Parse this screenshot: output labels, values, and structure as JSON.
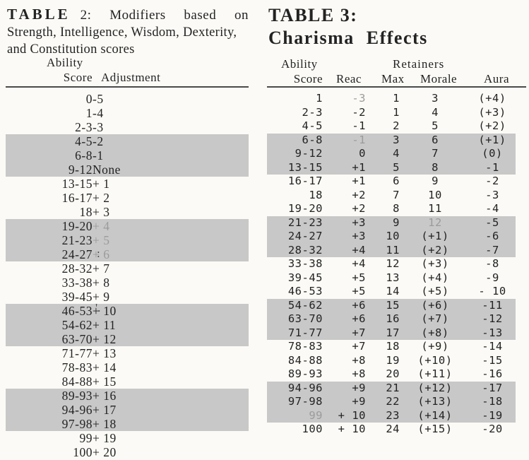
{
  "page": {
    "background": "#fbfaf6",
    "text_color": "#232323",
    "shade_color": "#c8c8c8",
    "rule_color": "#4a4a4a",
    "faded_color": "#9b9b9b"
  },
  "table2": {
    "title": {
      "word_bold": "TABLE",
      "line1_rest": "2: Modifiers based on",
      "line2": "Strength, Intelligence, Wisdom, Dexterity,",
      "line3": "and Constitution scores"
    },
    "headers": {
      "ability": "Ability",
      "score": "Score",
      "adjustment": "Adjustment"
    },
    "rows": [
      {
        "score": "0",
        "adjustment": "-5"
      },
      {
        "score": "1",
        "adjustment": "-4"
      },
      {
        "score": "2-3",
        "adjustment": "-3"
      },
      {
        "score": "4-5",
        "adjustment": "-2"
      },
      {
        "score": "6-8",
        "adjustment": "-1"
      },
      {
        "score": "9-12",
        "adjustment": "None"
      },
      {
        "score": "13-15",
        "adjustment": "+ 1"
      },
      {
        "score": "16-17",
        "adjustment": "+ 2"
      },
      {
        "score": "18",
        "adjustment": "+ 3"
      },
      {
        "score": "19-20",
        "adjustment": "+ 4",
        "faded": [
          "adjustment"
        ]
      },
      {
        "score": "21-23",
        "adjustment": "+ 5",
        "faded": [
          "adjustment"
        ]
      },
      {
        "score": "24-27",
        "adjustment": "+ 6",
        "faded": [
          "adjustment"
        ]
      },
      {
        "score": "28-32",
        "adjustment": "+ 7"
      },
      {
        "score": "33-38",
        "adjustment": "+ 8"
      },
      {
        "score": "39-45",
        "adjustment": "+ 9"
      },
      {
        "score": "46-53",
        "adjustment": "+ 10"
      },
      {
        "score": "54-62",
        "adjustment": "+ 11"
      },
      {
        "score": "63-70",
        "adjustment": "+ 12"
      },
      {
        "score": "71-77",
        "adjustment": "+ 13"
      },
      {
        "score": "78-83",
        "adjustment": "+ 14"
      },
      {
        "score": "84-88",
        "adjustment": "+ 15"
      },
      {
        "score": "89-93",
        "adjustment": "+ 16"
      },
      {
        "score": "94-96",
        "adjustment": "+ 17"
      },
      {
        "score": "97-98",
        "adjustment": "+ 18"
      },
      {
        "score": "99",
        "adjustment": "+ 19"
      },
      {
        "score": "100",
        "adjustment": "+ 20"
      }
    ]
  },
  "table3": {
    "title": {
      "line1": "TABLE 3:",
      "line2": "Charisma Effects"
    },
    "headers": {
      "ability": "Ability",
      "retainers": "Retainers",
      "score": "Score",
      "reac": "Reac",
      "max": "Max",
      "morale": "Morale",
      "aura": "Aura"
    },
    "rows": [
      {
        "score": "1",
        "reac": "-3",
        "max": "1",
        "morale": "3",
        "aura": "(+4)",
        "faded": [
          "reac"
        ]
      },
      {
        "score": "2-3",
        "reac": "-2",
        "max": "1",
        "morale": "4",
        "aura": "(+3)"
      },
      {
        "score": "4-5",
        "reac": "-1",
        "max": "2",
        "morale": "5",
        "aura": "(+2)"
      },
      {
        "score": "6-8",
        "reac": "-1",
        "max": "3",
        "morale": "6",
        "aura": "(+1)",
        "faded": [
          "reac"
        ]
      },
      {
        "score": "9-12",
        "reac": "0",
        "max": "4",
        "morale": "7",
        "aura": "(0)"
      },
      {
        "score": "13-15",
        "reac": "+1",
        "max": "5",
        "morale": "8",
        "aura": "-1"
      },
      {
        "score": "16-17",
        "reac": "+1",
        "max": "6",
        "morale": "9",
        "aura": "-2"
      },
      {
        "score": "18",
        "reac": "+2",
        "max": "7",
        "morale": "10",
        "aura": "-3"
      },
      {
        "score": "19-20",
        "reac": "+2",
        "max": "8",
        "morale": "11",
        "aura": "-4"
      },
      {
        "score": "21-23",
        "reac": "+3",
        "max": "9",
        "morale": "12",
        "aura": "-5",
        "faded": [
          "morale"
        ]
      },
      {
        "score": "24-27",
        "reac": "+3",
        "max": "10",
        "morale": "(+1)",
        "aura": "-6"
      },
      {
        "score": "28-32",
        "reac": "+4",
        "max": "11",
        "morale": "(+2)",
        "aura": "-7"
      },
      {
        "score": "33-38",
        "reac": "+4",
        "max": "12",
        "morale": "(+3)",
        "aura": "-8"
      },
      {
        "score": "39-45",
        "reac": "+5",
        "max": "13",
        "morale": "(+4)",
        "aura": "-9"
      },
      {
        "score": "46-53",
        "reac": "+5",
        "max": "14",
        "morale": "(+5)",
        "aura": "- 10"
      },
      {
        "score": "54-62",
        "reac": "+6",
        "max": "15",
        "morale": "(+6)",
        "aura": "-11"
      },
      {
        "score": "63-70",
        "reac": "+6",
        "max": "16",
        "morale": "(+7)",
        "aura": "-12"
      },
      {
        "score": "71-77",
        "reac": "+7",
        "max": "17",
        "morale": "(+8)",
        "aura": "-13"
      },
      {
        "score": "78-83",
        "reac": "+7",
        "max": "18",
        "morale": "(+9)",
        "aura": "-14"
      },
      {
        "score": "84-88",
        "reac": "+8",
        "max": "19",
        "morale": "(+10)",
        "aura": "-15"
      },
      {
        "score": "89-93",
        "reac": "+8",
        "max": "20",
        "morale": "(+11)",
        "aura": "-16"
      },
      {
        "score": "94-96",
        "reac": "+9",
        "max": "21",
        "morale": "(+12)",
        "aura": "-17"
      },
      {
        "score": "97-98",
        "reac": "+9",
        "max": "22",
        "morale": "(+13)",
        "aura": "-18"
      },
      {
        "score": "99",
        "reac": "+ 10",
        "max": "23",
        "morale": "(+14)",
        "aura": "-19",
        "faded": [
          "score"
        ]
      },
      {
        "score": "100",
        "reac": "+ 10",
        "max": "24",
        "morale": "(+15)",
        "aura": "-20"
      }
    ]
  },
  "artifacts": {
    "stray_colon": ":",
    "stray_tick": "'."
  }
}
